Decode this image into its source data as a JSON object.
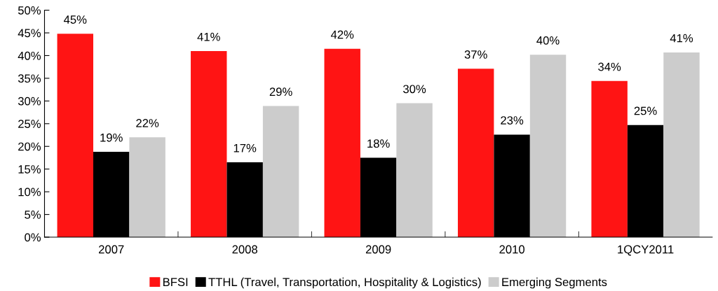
{
  "chart_data": {
    "type": "bar",
    "categories": [
      "2007",
      "2008",
      "2009",
      "2010",
      "1QCY2011"
    ],
    "series": [
      {
        "name": "BFSI",
        "color": "#ff1414",
        "values": [
          44.8,
          41.0,
          41.5,
          37.1,
          34.4
        ],
        "value_labels": [
          "45%",
          "41%",
          "42%",
          "37%",
          "34%"
        ]
      },
      {
        "name": "TTHL (Travel, Transportation, Hospitality & Logistics)",
        "color": "#000000",
        "values": [
          18.8,
          16.5,
          17.5,
          22.6,
          24.7
        ],
        "value_labels": [
          "19%",
          "17%",
          "18%",
          "23%",
          "25%"
        ]
      },
      {
        "name": "Emerging Segments",
        "color": "#cccccc",
        "values": [
          22.0,
          28.9,
          29.5,
          40.2,
          40.7
        ],
        "value_labels": [
          "22%",
          "29%",
          "30%",
          "40%",
          "41%"
        ]
      }
    ],
    "ylim": [
      0,
      50
    ],
    "yticks": [
      {
        "value": 0,
        "label": "0%"
      },
      {
        "value": 5,
        "label": "5%"
      },
      {
        "value": 10,
        "label": "10%"
      },
      {
        "value": 15,
        "label": "15%"
      },
      {
        "value": 20,
        "label": "20%"
      },
      {
        "value": 25,
        "label": "25%"
      },
      {
        "value": 30,
        "label": "30%"
      },
      {
        "value": 35,
        "label": "35%"
      },
      {
        "value": 40,
        "label": "40%"
      },
      {
        "value": 45,
        "label": "45%"
      },
      {
        "value": 50,
        "label": "50%"
      }
    ],
    "grid": false,
    "legend": "bottom"
  }
}
